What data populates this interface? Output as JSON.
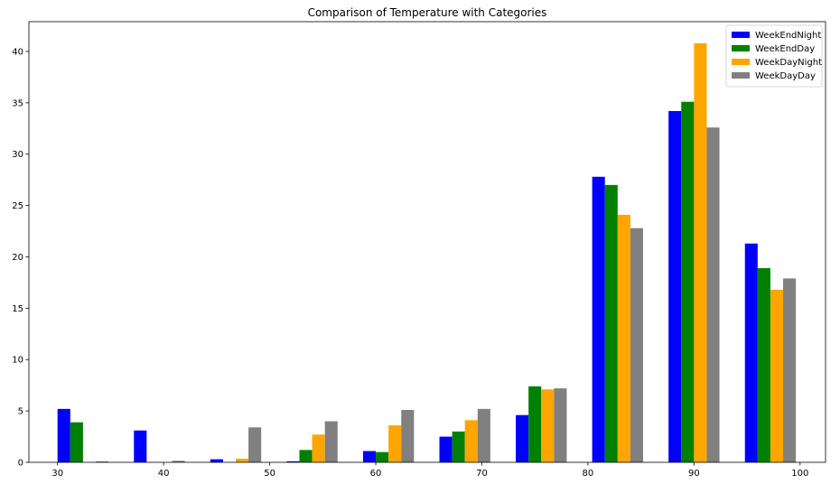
{
  "chart_data": {
    "type": "bar",
    "title": "Comparison of Temperature with Categories",
    "xlabel": "",
    "ylabel": "",
    "xlim": [
      27.3,
      102.4
    ],
    "ylim": [
      0,
      42.9
    ],
    "xticks": [
      30,
      40,
      50,
      60,
      70,
      80,
      90,
      100
    ],
    "yticks": [
      0,
      5,
      10,
      15,
      20,
      25,
      30,
      35,
      40
    ],
    "grid": false,
    "legend_position": "top-right",
    "bin_starts": [
      30.0,
      37.2,
      44.4,
      51.6,
      58.8,
      66.0,
      73.2,
      80.4,
      87.6,
      94.8
    ],
    "bar_width": 1.2,
    "series": [
      {
        "name": "WeekEndNight",
        "color": "#0000ff",
        "offset": 0.0,
        "values": [
          5.2,
          3.1,
          0.3,
          0.1,
          1.1,
          2.5,
          4.6,
          27.8,
          34.2,
          21.3
        ]
      },
      {
        "name": "WeekEndDay",
        "color": "#008000",
        "offset": 1.2,
        "values": [
          3.9,
          0.0,
          0.0,
          1.2,
          1.0,
          3.0,
          7.4,
          27.0,
          35.1,
          18.9
        ]
      },
      {
        "name": "WeekDayNight",
        "color": "#ffa500",
        "offset": 2.4,
        "values": [
          0.0,
          0.0,
          0.35,
          2.7,
          3.6,
          4.1,
          7.1,
          24.1,
          40.8,
          16.8
        ]
      },
      {
        "name": "WeekDayDay",
        "color": "#808080",
        "offset": 3.6,
        "values": [
          0.1,
          0.15,
          3.4,
          4.0,
          5.1,
          5.2,
          7.2,
          22.8,
          32.6,
          17.9
        ]
      }
    ]
  }
}
